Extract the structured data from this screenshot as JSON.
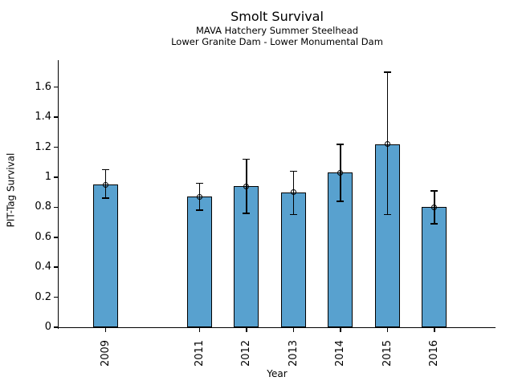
{
  "window": {
    "background": "#ffffff"
  },
  "chart_data": {
    "type": "bar",
    "title": "Smolt Survival",
    "subtitle_lines": [
      "MAVA Hatchery Summer Steelhead",
      "Lower Granite Dam - Lower Monumental Dam"
    ],
    "xlabel": "Year",
    "ylabel": "PIT-Tag Survival",
    "categories": [
      2009,
      2011,
      2012,
      2013,
      2014,
      2015,
      2016
    ],
    "values": [
      0.95,
      0.87,
      0.94,
      0.9,
      1.03,
      1.22,
      0.8
    ],
    "error_low": [
      0.86,
      0.78,
      0.76,
      0.75,
      0.84,
      0.75,
      0.69
    ],
    "error_high": [
      1.05,
      0.96,
      1.12,
      1.04,
      1.22,
      1.7,
      0.91
    ],
    "yticks": [
      0,
      0.2,
      0.4,
      0.6,
      0.8,
      1,
      1.2,
      1.4,
      1.6
    ],
    "ytick_labels": [
      "0",
      "0.2",
      "0.4",
      "0.6",
      "0.8",
      "1",
      "1.2",
      "1.4",
      "1.6"
    ],
    "xlim": [
      2008.0,
      2017.3
    ],
    "ylim": [
      0,
      1.78
    ],
    "bar_width_years": 0.53,
    "grid": false,
    "legend": "none",
    "marker": "open-circle",
    "colors": {
      "bar_fill": "#58A1CF",
      "bar_edge": "#000000",
      "error": "#000000",
      "axis": "#000000",
      "text": "#000000"
    }
  }
}
